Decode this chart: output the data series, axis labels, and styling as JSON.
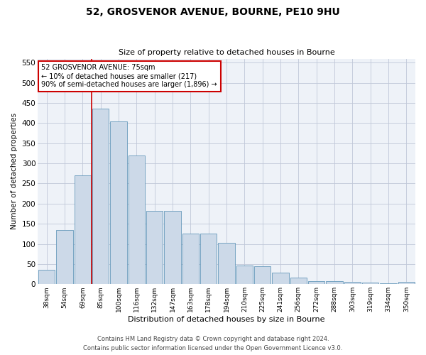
{
  "title_line1": "52, GROSVENOR AVENUE, BOURNE, PE10 9HU",
  "title_line2": "Size of property relative to detached houses in Bourne",
  "xlabel": "Distribution of detached houses by size in Bourne",
  "ylabel": "Number of detached properties",
  "categories": [
    "38sqm",
    "54sqm",
    "69sqm",
    "85sqm",
    "100sqm",
    "116sqm",
    "132sqm",
    "147sqm",
    "163sqm",
    "178sqm",
    "194sqm",
    "210sqm",
    "225sqm",
    "241sqm",
    "256sqm",
    "272sqm",
    "288sqm",
    "303sqm",
    "319sqm",
    "334sqm",
    "350sqm"
  ],
  "values": [
    35,
    135,
    270,
    435,
    405,
    320,
    182,
    182,
    125,
    125,
    103,
    47,
    45,
    28,
    16,
    8,
    8,
    5,
    4,
    3,
    5
  ],
  "bar_color": "#ccd9e8",
  "bar_edge_color": "#6699bb",
  "vertical_line_color": "#cc0000",
  "annotation_text": "52 GROSVENOR AVENUE: 75sqm\n← 10% of detached houses are smaller (217)\n90% of semi-detached houses are larger (1,896) →",
  "annotation_box_color": "#ffffff",
  "annotation_box_edge_color": "#cc0000",
  "ylim": [
    0,
    560
  ],
  "yticks": [
    0,
    50,
    100,
    150,
    200,
    250,
    300,
    350,
    400,
    450,
    500,
    550
  ],
  "bg_color": "#eef2f8",
  "footer_line1": "Contains HM Land Registry data © Crown copyright and database right 2024.",
  "footer_line2": "Contains public sector information licensed under the Open Government Licence v3.0."
}
